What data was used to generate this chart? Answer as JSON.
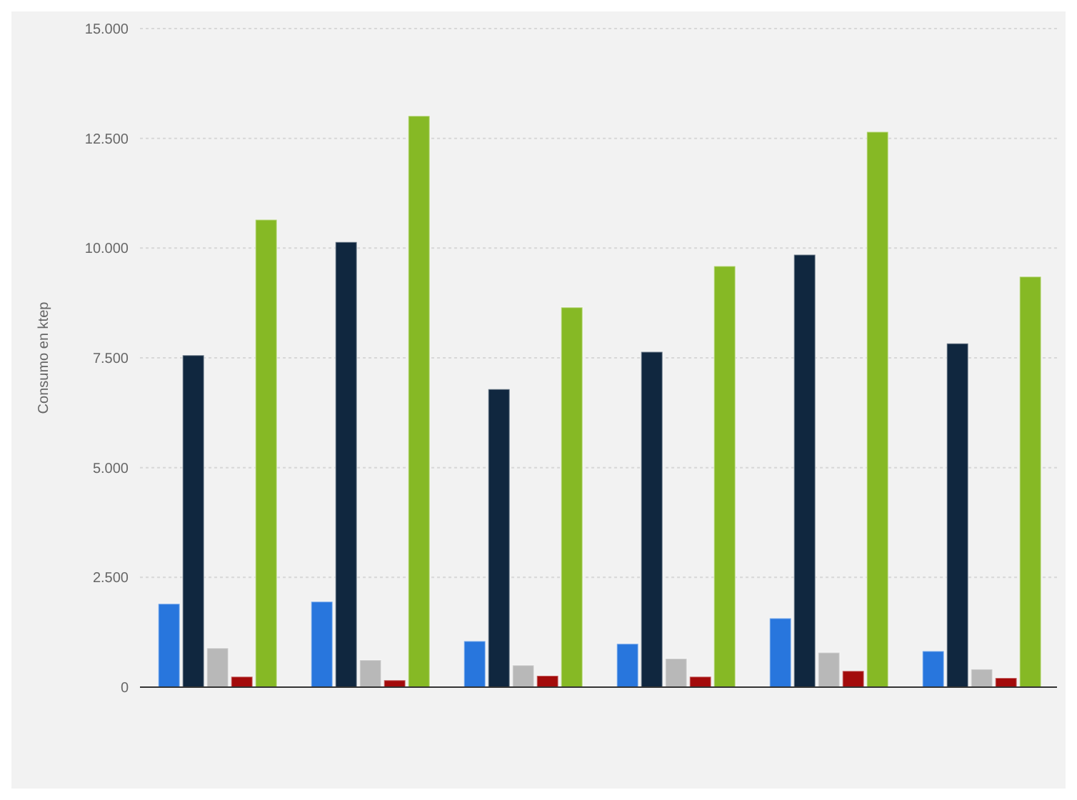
{
  "chart_data": {
    "type": "bar",
    "ylabel": "Consumo en ktep",
    "categories": [
      null,
      null,
      null,
      null,
      null,
      null
    ],
    "series": [
      {
        "color": "#2876dd",
        "values": [
          1900,
          1950,
          1050,
          990,
          1570,
          820
        ]
      },
      {
        "color": "#10273f",
        "values": [
          7560,
          10140,
          6790,
          7640,
          9850,
          7830
        ]
      },
      {
        "color": "#b8b8b8",
        "values": [
          890,
          620,
          500,
          650,
          790,
          410
        ]
      },
      {
        "color": "#a30b0b",
        "values": [
          240,
          160,
          260,
          240,
          370,
          210
        ]
      },
      {
        "color": "#86b925",
        "values": [
          10650,
          13010,
          8650,
          9590,
          12650,
          9350
        ]
      }
    ],
    "ylim": [
      0,
      15000
    ],
    "yticks": [
      0,
      {
        "value": 2500,
        "label": "2.500"
      },
      {
        "value": 5000,
        "label": "5.000"
      },
      {
        "value": 7500,
        "label": "7.500"
      },
      {
        "value": 10000,
        "label": "10.000"
      },
      {
        "value": 12500,
        "label": "12.500"
      },
      {
        "value": 15000,
        "label": "15.000"
      }
    ],
    "grid": "y",
    "legend": false
  }
}
